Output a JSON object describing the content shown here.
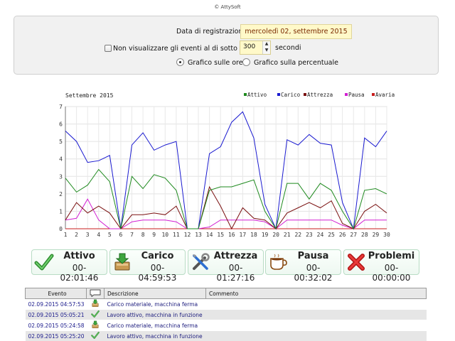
{
  "copyright": "© AttySoft",
  "filter": {
    "date_label": "Data di registrazione",
    "date_value": "mercoledì 02, settembre 2015",
    "hide_label": "Non visualizzare gli eventi al di sotto dei",
    "hide_checked": false,
    "seconds_value": "300",
    "seconds_unit": "secondi",
    "radio_hours": "Grafico sulle ore",
    "radio_percent": "Grafico sulla percentuale",
    "selected_radio": "hours"
  },
  "chart_data": {
    "type": "line",
    "title": "Settembre 2015",
    "x": [
      1,
      2,
      3,
      4,
      5,
      6,
      7,
      8,
      9,
      10,
      11,
      12,
      13,
      14,
      15,
      16,
      17,
      18,
      19,
      20,
      21,
      22,
      23,
      24,
      25,
      26,
      27,
      28,
      29,
      30
    ],
    "ylim": [
      0,
      7
    ],
    "yticks": [
      0,
      1,
      2,
      3,
      4,
      5,
      6,
      7
    ],
    "grid": true,
    "legend_position": "top-right",
    "series": [
      {
        "name": "Attivo",
        "color": "#1f8a1f",
        "values": [
          2.9,
          2.1,
          2.5,
          3.4,
          2.7,
          0,
          3.0,
          2.3,
          3.1,
          2.9,
          2.2,
          0,
          0,
          2.2,
          2.4,
          2.4,
          2.6,
          2.8,
          1.0,
          0,
          2.6,
          2.6,
          1.7,
          2.6,
          2.2,
          1.0,
          0,
          2.2,
          2.3,
          2.0
        ]
      },
      {
        "name": "Carico",
        "color": "#1a1ad0",
        "values": [
          5.6,
          5.0,
          3.8,
          3.9,
          4.2,
          0,
          4.8,
          5.5,
          4.5,
          4.8,
          5.0,
          0,
          0,
          4.3,
          4.7,
          6.1,
          6.7,
          5.2,
          1.4,
          0,
          5.1,
          4.8,
          5.4,
          4.9,
          4.8,
          1.5,
          0,
          5.2,
          4.7,
          5.6
        ]
      },
      {
        "name": "Attrezza",
        "color": "#7a1010",
        "values": [
          0.5,
          1.5,
          0.9,
          1.3,
          0.9,
          0,
          0.8,
          0.8,
          0.9,
          0.8,
          1.3,
          0,
          0,
          2.4,
          1.3,
          0,
          1.2,
          0.6,
          0.5,
          0,
          0.9,
          1.2,
          1.5,
          1.2,
          1.6,
          0.3,
          0,
          1.0,
          1.4,
          0.9
        ]
      },
      {
        "name": "Pausa",
        "color": "#d21fd2",
        "values": [
          0.5,
          0.6,
          1.7,
          0.5,
          0,
          0,
          0.4,
          0.5,
          0.5,
          0.5,
          0.4,
          0,
          0,
          0.1,
          0.5,
          0.5,
          0.5,
          0.5,
          0.4,
          0,
          0.5,
          0.5,
          0.5,
          0.5,
          0.5,
          0.2,
          0,
          0.5,
          0.5,
          0.5
        ]
      },
      {
        "name": "Avaria",
        "color": "#c81e1e",
        "values": [
          0,
          0,
          0,
          0,
          0,
          0,
          0,
          0,
          0,
          0,
          0,
          0,
          0,
          0,
          0,
          0,
          0,
          0,
          0,
          0,
          0,
          0,
          0,
          0,
          0,
          0,
          0,
          0,
          0,
          0
        ]
      }
    ]
  },
  "status": [
    {
      "label": "Attivo",
      "time": "00-02:01:46",
      "icon": "check-icon"
    },
    {
      "label": "Carico",
      "time": "00-04:59:53",
      "icon": "load-icon"
    },
    {
      "label": "Attrezza",
      "time": "00-01:27:16",
      "icon": "tools-icon"
    },
    {
      "label": "Pausa",
      "time": "00-00:32:02",
      "icon": "coffee-cup-icon"
    },
    {
      "label": "Problemi",
      "time": "00-00:00:00",
      "icon": "cross-icon"
    }
  ],
  "events": {
    "headers": {
      "event": "Evento",
      "desc": "Descrizione",
      "comment": "Commento"
    },
    "rows": [
      {
        "time": "02.09.2015 04:57:53",
        "icon": "load-icon",
        "desc": "Carico materiale, macchina ferma",
        "comment": ""
      },
      {
        "time": "02.09.2015 05:05:21",
        "icon": "check-icon",
        "desc": "Lavoro attivo, macchina in funzione",
        "comment": ""
      },
      {
        "time": "02.09.2015 05:24:58",
        "icon": "load-icon",
        "desc": "Carico materiale, macchina ferma",
        "comment": ""
      },
      {
        "time": "02.09.2015 05:25:20",
        "icon": "check-icon",
        "desc": "Lavoro attivo, macchina in funzione",
        "comment": ""
      }
    ]
  }
}
